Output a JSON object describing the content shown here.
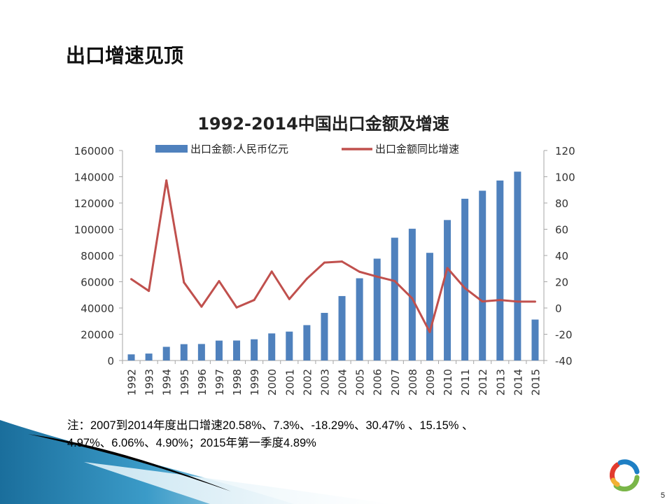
{
  "slide": {
    "title": "出口增速见顶",
    "note_line1": "注：2007到2014年度出口增速20.58%、7.3%、-18.29%、30.47% 、15.15% 、",
    "note_line2": "4.97%、6.06%、4.90%；2015年第一季度4.89%",
    "page_number": "5"
  },
  "chart_data": {
    "type": "bar+line",
    "title": "1992-2014中国出口金额及增速",
    "categories": [
      "1992",
      "1993",
      "1994",
      "1995",
      "1996",
      "1997",
      "1998",
      "1999",
      "2000",
      "2001",
      "2002",
      "2003",
      "2004",
      "2005",
      "2006",
      "2007",
      "2008",
      "2009",
      "2010",
      "2011",
      "2012",
      "2013",
      "2014",
      "2015"
    ],
    "series": [
      {
        "name": "出口金额:人民币亿元",
        "type": "bar",
        "axis": "left",
        "color": "#4F81BD",
        "values": [
          4676,
          5285,
          10422,
          12452,
          12576,
          15161,
          15224,
          16160,
          20634,
          22024,
          26948,
          36288,
          49103,
          62648,
          77598,
          93563,
          100395,
          82030,
          107023,
          123241,
          129359,
          137131,
          143884,
          31200
        ]
      },
      {
        "name": "出口金额同比增速",
        "type": "line",
        "axis": "right",
        "color": "#C0504D",
        "values": [
          22.0,
          13.0,
          97.2,
          19.5,
          1.0,
          20.5,
          0.4,
          6.1,
          27.8,
          6.8,
          22.3,
          34.6,
          35.4,
          27.6,
          23.9,
          20.58,
          7.3,
          -18.29,
          30.47,
          15.15,
          4.97,
          6.06,
          4.9,
          4.89
        ]
      }
    ],
    "y_left": {
      "min": 0,
      "max": 160000,
      "ticks": [
        "0",
        "20000",
        "40000",
        "60000",
        "80000",
        "100000",
        "120000",
        "140000",
        "160000"
      ]
    },
    "y_right": {
      "min": -40,
      "max": 120,
      "ticks": [
        "-40",
        "-20",
        "0",
        "20",
        "40",
        "60",
        "80",
        "100",
        "120"
      ]
    },
    "legend_position": "top",
    "grid": false
  }
}
